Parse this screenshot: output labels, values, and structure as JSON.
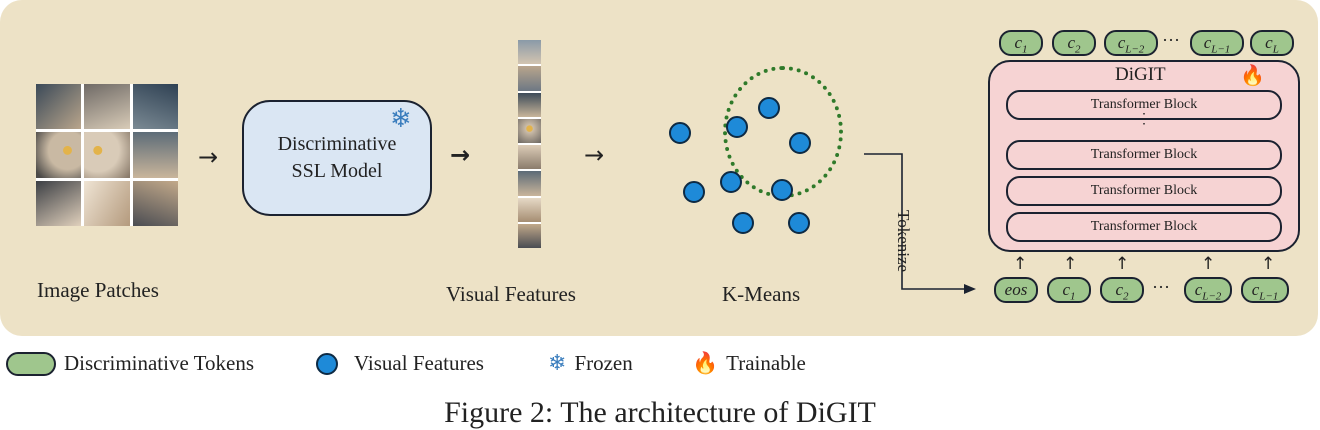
{
  "stages": {
    "image_patches_label": "Image Patches",
    "ssl_model": {
      "line1": "Discriminative",
      "line2": "SSL Model"
    },
    "visual_features_label": "Visual Features",
    "kmeans_label": "K-Means",
    "tokenize_label": "Tokenize"
  },
  "digit": {
    "title": "DiGIT",
    "blocks": [
      "Transformer Block",
      "Transformer Block",
      "Transformer Block",
      "Transformer Block"
    ],
    "vertical_ellipsis": "⋮"
  },
  "output_tokens": [
    "c",
    "c",
    "c",
    "c",
    "c"
  ],
  "output_token_subs": [
    "1",
    "2",
    "L−2",
    "L−1",
    "L"
  ],
  "input_tokens": [
    "eos",
    "c",
    "c",
    "c",
    "c"
  ],
  "input_token_subs": [
    "",
    "1",
    "2",
    "L−2",
    "L−1"
  ],
  "ellipsis": "···",
  "legend": {
    "tokens": "Discriminative Tokens",
    "features": "Visual Features",
    "frozen": "Frozen",
    "trainable": "Trainable"
  },
  "icons": {
    "frozen": "snowflake-icon",
    "trainable": "fire-icon"
  },
  "colors": {
    "panel": "#ede2c6",
    "ssl_box": "#dae6f3",
    "digit_box": "#f6d3d3",
    "token": "#9fc68d",
    "feature_dot": "#1e8ad8",
    "cluster": "#2f7a2a",
    "frozen_icon": "#3a7dbd"
  },
  "caption": "Figure 2: The architecture of DiGIT"
}
